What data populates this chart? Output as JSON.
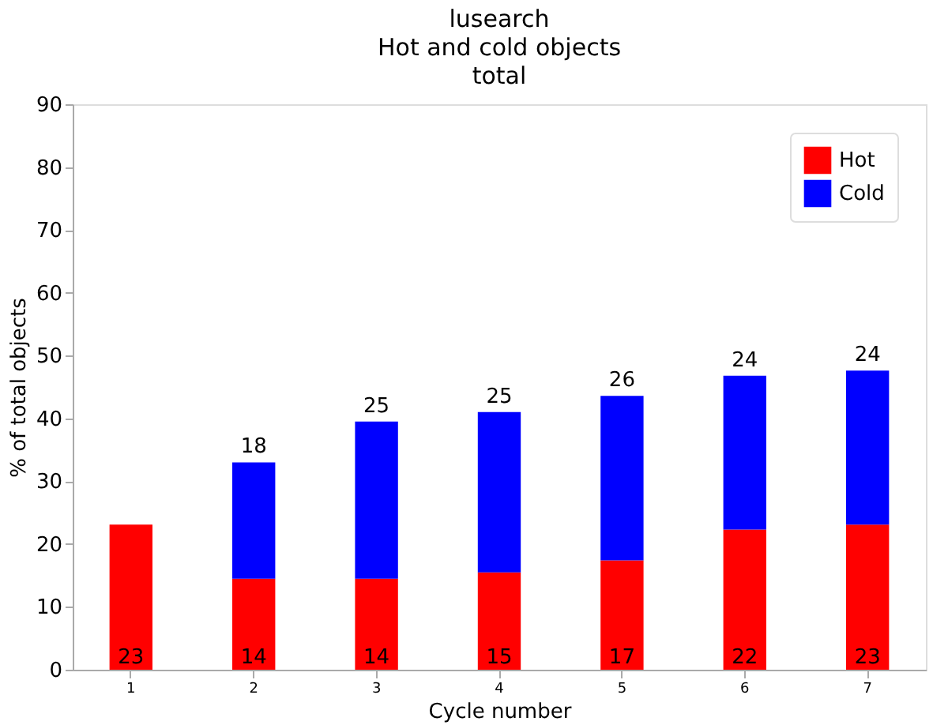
{
  "chart_data": {
    "type": "bar",
    "title": "lusearch\nHot and cold objects\ntotal",
    "xlabel": "Cycle number",
    "ylabel": "% of total objects",
    "categories": [
      "1",
      "2",
      "3",
      "4",
      "5",
      "6",
      "7"
    ],
    "stacked": true,
    "series": [
      {
        "name": "Hot",
        "color": "#ff0000",
        "values": [
          23.1,
          14.5,
          14.5,
          15.5,
          17.4,
          22.3,
          23.1
        ],
        "value_labels": [
          "23",
          "14",
          "14",
          "15",
          "17",
          "22",
          "23"
        ]
      },
      {
        "name": "Cold",
        "color": "#0000ff",
        "values": [
          null,
          18.5,
          25.0,
          25.5,
          26.2,
          24.5,
          24.5
        ],
        "value_labels": [
          null,
          "18",
          "25",
          "25",
          "26",
          "24",
          "24"
        ]
      }
    ],
    "ylim": [
      0,
      90
    ],
    "yticks": [
      0,
      10,
      20,
      30,
      40,
      50,
      60,
      70,
      80,
      90
    ],
    "legend": "top right",
    "grid": false
  }
}
